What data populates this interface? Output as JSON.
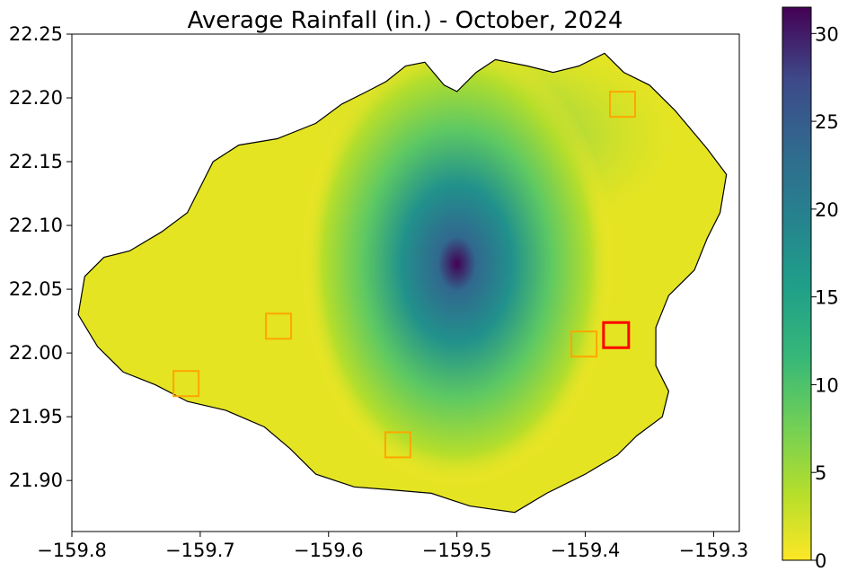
{
  "chart_data": {
    "type": "heatmap",
    "title": "Average Rainfall (in.) - October, 2024",
    "xlabel": "",
    "ylabel": "",
    "xlim": [
      -159.8,
      -159.28
    ],
    "ylim": [
      21.86,
      22.25
    ],
    "x_ticks": [
      -159.8,
      -159.7,
      -159.6,
      -159.5,
      -159.4,
      -159.3
    ],
    "x_tick_labels": [
      "−159.8",
      "−159.7",
      "−159.6",
      "−159.5",
      "−159.4",
      "−159.3"
    ],
    "y_ticks": [
      21.9,
      21.95,
      22.0,
      22.05,
      22.1,
      22.15,
      22.2,
      22.25
    ],
    "y_tick_labels": [
      "21.90",
      "21.95",
      "22.00",
      "22.05",
      "22.10",
      "22.15",
      "22.20",
      "22.25"
    ],
    "colorbar": {
      "colormap": "viridis_r",
      "min": 0,
      "max": 31.5,
      "ticks": [
        0,
        5,
        10,
        15,
        20,
        25,
        30
      ],
      "tick_labels": [
        "0",
        "5",
        "10",
        "15",
        "20",
        "25",
        "30"
      ]
    },
    "grid": false,
    "max_rainfall_location": {
      "lon": -159.5,
      "lat": 22.07,
      "value": 31.5
    },
    "coastline": [
      [
        -159.795,
        22.03
      ],
      [
        -159.79,
        22.06
      ],
      [
        -159.775,
        22.075
      ],
      [
        -159.755,
        22.08
      ],
      [
        -159.73,
        22.095
      ],
      [
        -159.71,
        22.11
      ],
      [
        -159.7,
        22.13
      ],
      [
        -159.69,
        22.15
      ],
      [
        -159.67,
        22.163
      ],
      [
        -159.64,
        22.168
      ],
      [
        -159.61,
        22.18
      ],
      [
        -159.59,
        22.195
      ],
      [
        -159.57,
        22.205
      ],
      [
        -159.555,
        22.213
      ],
      [
        -159.54,
        22.225
      ],
      [
        -159.525,
        22.228
      ],
      [
        -159.51,
        22.21
      ],
      [
        -159.5,
        22.205
      ],
      [
        -159.485,
        22.22
      ],
      [
        -159.47,
        22.23
      ],
      [
        -159.445,
        22.225
      ],
      [
        -159.425,
        22.22
      ],
      [
        -159.405,
        22.225
      ],
      [
        -159.385,
        22.235
      ],
      [
        -159.37,
        22.22
      ],
      [
        -159.35,
        22.21
      ],
      [
        -159.33,
        22.19
      ],
      [
        -159.305,
        22.16
      ],
      [
        -159.29,
        22.14
      ],
      [
        -159.295,
        22.11
      ],
      [
        -159.305,
        22.09
      ],
      [
        -159.315,
        22.065
      ],
      [
        -159.335,
        22.045
      ],
      [
        -159.345,
        22.02
      ],
      [
        -159.345,
        21.99
      ],
      [
        -159.335,
        21.97
      ],
      [
        -159.34,
        21.95
      ],
      [
        -159.36,
        21.935
      ],
      [
        -159.375,
        21.92
      ],
      [
        -159.4,
        21.905
      ],
      [
        -159.43,
        21.89
      ],
      [
        -159.455,
        21.875
      ],
      [
        -159.49,
        21.88
      ],
      [
        -159.52,
        21.89
      ],
      [
        -159.555,
        21.893
      ],
      [
        -159.58,
        21.895
      ],
      [
        -159.61,
        21.905
      ],
      [
        -159.63,
        21.925
      ],
      [
        -159.65,
        21.942
      ],
      [
        -159.68,
        21.955
      ],
      [
        -159.71,
        21.962
      ],
      [
        -159.735,
        21.975
      ],
      [
        -159.76,
        21.985
      ],
      [
        -159.78,
        22.005
      ],
      [
        -159.795,
        22.03
      ]
    ],
    "stations": [
      {
        "lon": -159.371,
        "lat": 22.195,
        "color": "#ffa500",
        "highlighted": false
      },
      {
        "lon": -159.639,
        "lat": 22.021,
        "color": "#ffa500",
        "highlighted": false
      },
      {
        "lon": -159.401,
        "lat": 22.007,
        "color": "#ffa500",
        "highlighted": false
      },
      {
        "lon": -159.711,
        "lat": 21.976,
        "color": "#ffa500",
        "highlighted": false
      },
      {
        "lon": -159.546,
        "lat": 21.928,
        "color": "#ffa500",
        "highlighted": false
      },
      {
        "lon": -159.376,
        "lat": 22.014,
        "color": "#ff0000",
        "highlighted": true
      }
    ]
  }
}
